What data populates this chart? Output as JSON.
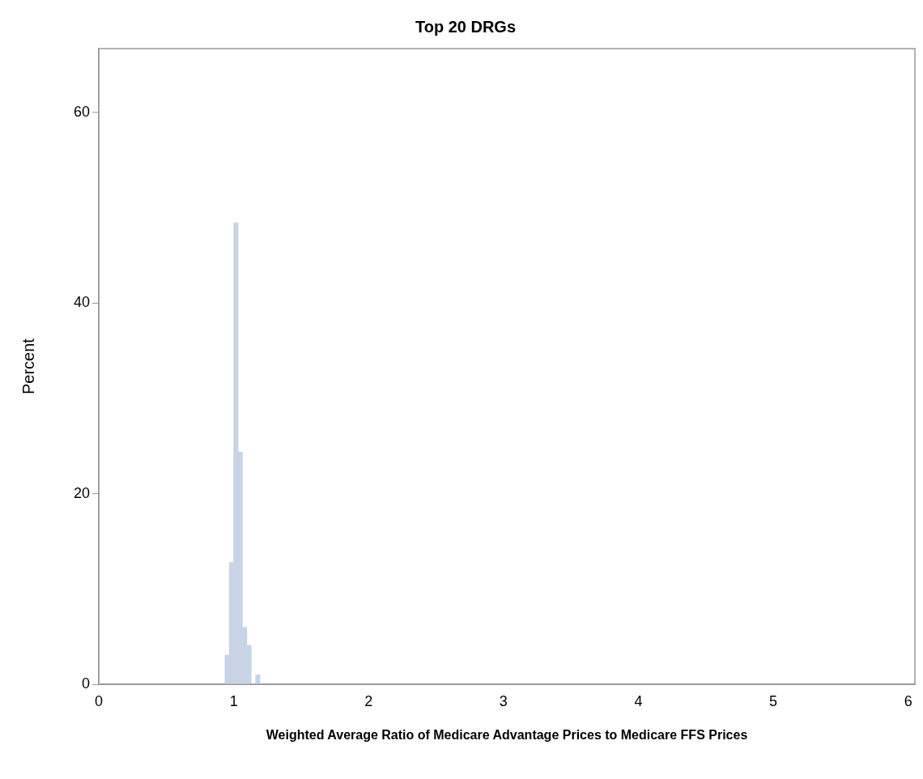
{
  "chart_data": {
    "type": "histogram",
    "title": "Top 20 DRGs",
    "xlabel": "Weighted Average Ratio of Medicare Advantage Prices to Medicare FFS Prices",
    "ylabel": "Percent",
    "bins": [
      0.935,
      0.9675,
      1.0,
      1.0325,
      1.065,
      1.0975,
      1.13,
      1.1625,
      1.195
    ],
    "values": [
      3.1,
      12.8,
      48.4,
      24.4,
      6.0,
      4.1,
      0,
      1.0
    ],
    "color": "#c8d4e6",
    "xlim": [
      0,
      6.05
    ],
    "xticks": [
      0,
      1,
      2,
      3,
      4,
      5,
      6
    ],
    "ylim": [
      0,
      66.7
    ],
    "yticks": [
      0,
      20,
      40,
      60
    ],
    "grid": false,
    "legend": false
  }
}
